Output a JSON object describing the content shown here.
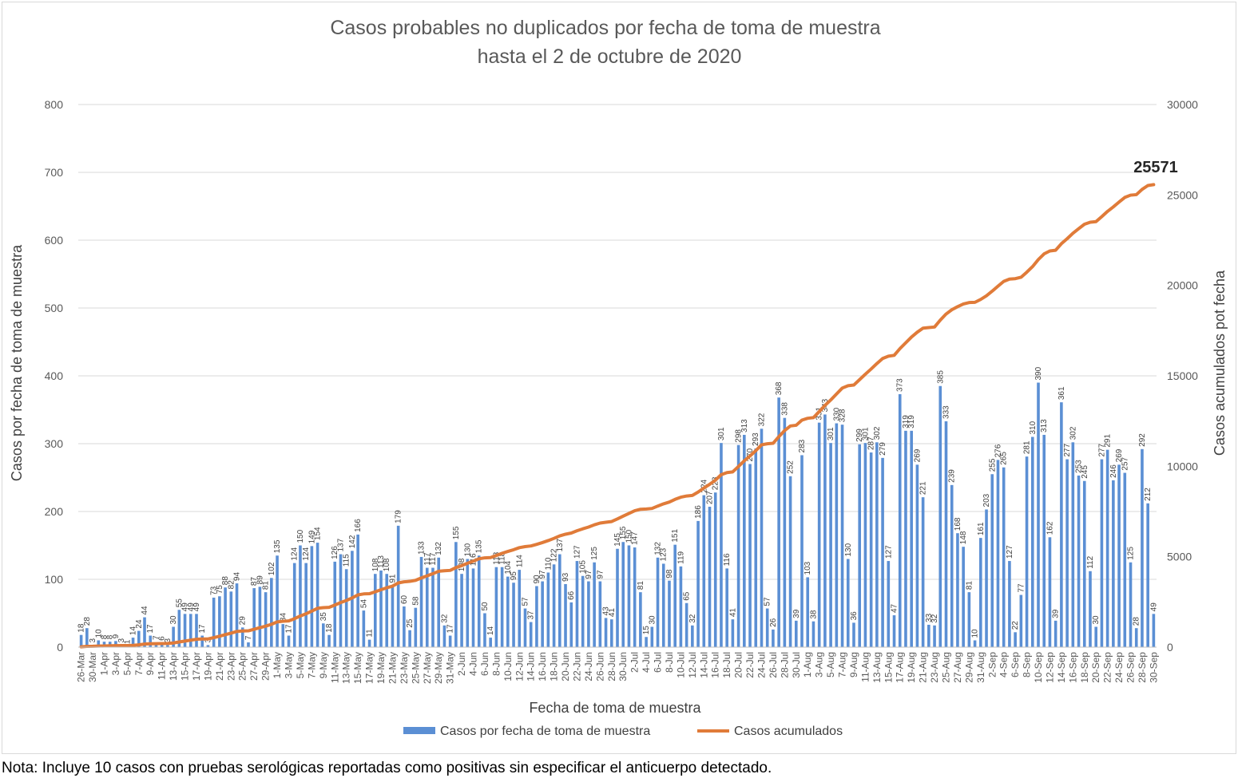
{
  "chart_data": {
    "type": "bar+line",
    "title_line1": "Casos probables no duplicados por fecha de toma de muestra",
    "title_line2": "hasta el  2 de octubre de 2020",
    "xlabel": "Fecha de toma de muestra",
    "ylabel_left": "Casos por fecha de toma de muestra",
    "ylabel_right": "Casos acumulados pot fecha",
    "ylim_left": [
      0,
      800
    ],
    "ylim_right": [
      0,
      30000
    ],
    "yticks_left": [
      "0",
      "100",
      "200",
      "300",
      "400",
      "500",
      "600",
      "700",
      "800"
    ],
    "yticks_right": [
      "0",
      "5000",
      "10000",
      "15000",
      "20000",
      "25000",
      "30000"
    ],
    "x_tick_labels": [
      "26-Mar",
      "30-Mar",
      "1-Apr",
      "3-Apr",
      "5-Apr",
      "7-Apr",
      "9-Apr",
      "11-Apr",
      "13-Apr",
      "15-Apr",
      "17-Apr",
      "19-Apr",
      "21-Apr",
      "23-Apr",
      "25-Apr",
      "27-Apr",
      "29-Apr",
      "1-May",
      "3-May",
      "5-May",
      "7-May",
      "9-May",
      "11-May",
      "13-May",
      "15-May",
      "17-May",
      "19-May",
      "21-May",
      "23-May",
      "25-May",
      "27-May",
      "29-May",
      "31-May",
      "2-Jun",
      "4-Jun",
      "6-Jun",
      "8-Jun",
      "10-Jun",
      "12-Jun",
      "14-Jun",
      "16-Jun",
      "18-Jun",
      "20-Jun",
      "22-Jun",
      "24-Jun",
      "26-Jun",
      "28-Jun",
      "30-Jun",
      "2-Jul",
      "4-Jul",
      "6-Jul",
      "8-Jul",
      "10-Jul",
      "12-Jul",
      "14-Jul",
      "16-Jul",
      "18-Jul",
      "20-Jul",
      "22-Jul",
      "24-Jul",
      "26-Jul",
      "28-Jul",
      "30-Jul",
      "1-Aug",
      "3-Aug",
      "5-Aug",
      "7-Aug",
      "9-Aug",
      "11-Aug",
      "13-Aug",
      "15-Aug",
      "17-Aug",
      "19-Aug",
      "21-Aug",
      "23-Aug",
      "25-Aug",
      "27-Aug",
      "29-Aug",
      "31-Aug",
      "2-Sep",
      "4-Sep",
      "6-Sep",
      "8-Sep",
      "10-Sep",
      "12-Sep",
      "14-Sep",
      "16-Sep",
      "18-Sep",
      "20-Sep",
      "22-Sep",
      "24-Sep",
      "26-Sep",
      "28-Sep",
      "30-Sep"
    ],
    "series": [
      {
        "name": "Casos por fecha de toma de muestra",
        "kind": "bar",
        "axis": "left",
        "color": "#5b8fd4",
        "values": [
          18,
          28,
          3,
          10,
          8,
          8,
          9,
          3,
          1,
          14,
          24,
          44,
          17,
          7,
          6,
          3,
          30,
          55,
          49,
          49,
          49,
          17,
          3,
          73,
          75,
          88,
          82,
          94,
          29,
          7,
          87,
          89,
          81,
          102,
          135,
          34,
          17,
          124,
          150,
          124,
          149,
          154,
          35,
          18,
          126,
          137,
          115,
          142,
          166,
          54,
          11,
          108,
          113,
          108,
          91,
          179,
          60,
          25,
          58,
          133,
          117,
          117,
          132,
          32,
          17,
          155,
          108,
          130,
          116,
          135,
          50,
          14,
          118,
          118,
          104,
          95,
          114,
          57,
          37,
          90,
          97,
          110,
          122,
          137,
          93,
          66,
          127,
          105,
          97,
          125,
          97,
          43,
          41,
          145,
          155,
          150,
          147,
          81,
          15,
          30,
          132,
          123,
          98,
          151,
          119,
          65,
          32,
          186,
          224,
          207,
          228,
          301,
          116,
          41,
          298,
          313,
          270,
          293,
          322,
          57,
          26,
          368,
          338,
          252,
          39,
          283,
          103,
          38,
          331,
          343,
          301,
          330,
          328,
          130,
          36,
          299,
          301,
          287,
          302,
          279,
          127,
          47,
          373,
          319,
          319,
          269,
          221,
          33,
          32,
          385,
          333,
          239,
          168,
          148,
          81,
          10,
          161,
          203,
          255,
          276,
          265,
          127,
          22,
          77,
          281,
          310,
          390,
          313,
          162,
          39,
          361,
          277,
          302,
          253,
          245,
          112,
          30,
          277,
          291,
          246,
          269,
          257,
          125,
          28,
          292,
          212,
          49
        ]
      },
      {
        "name": "Casos acumulados",
        "kind": "line",
        "axis": "right",
        "color": "#e07b39",
        "final_value": 25571
      }
    ],
    "legend_position": "bottom",
    "grid": "horizontal"
  },
  "callout_label": "25571",
  "note": "Nota: Incluye 10 casos con pruebas serológicas reportadas como positivas sin especificar el anticuerpo detectado."
}
